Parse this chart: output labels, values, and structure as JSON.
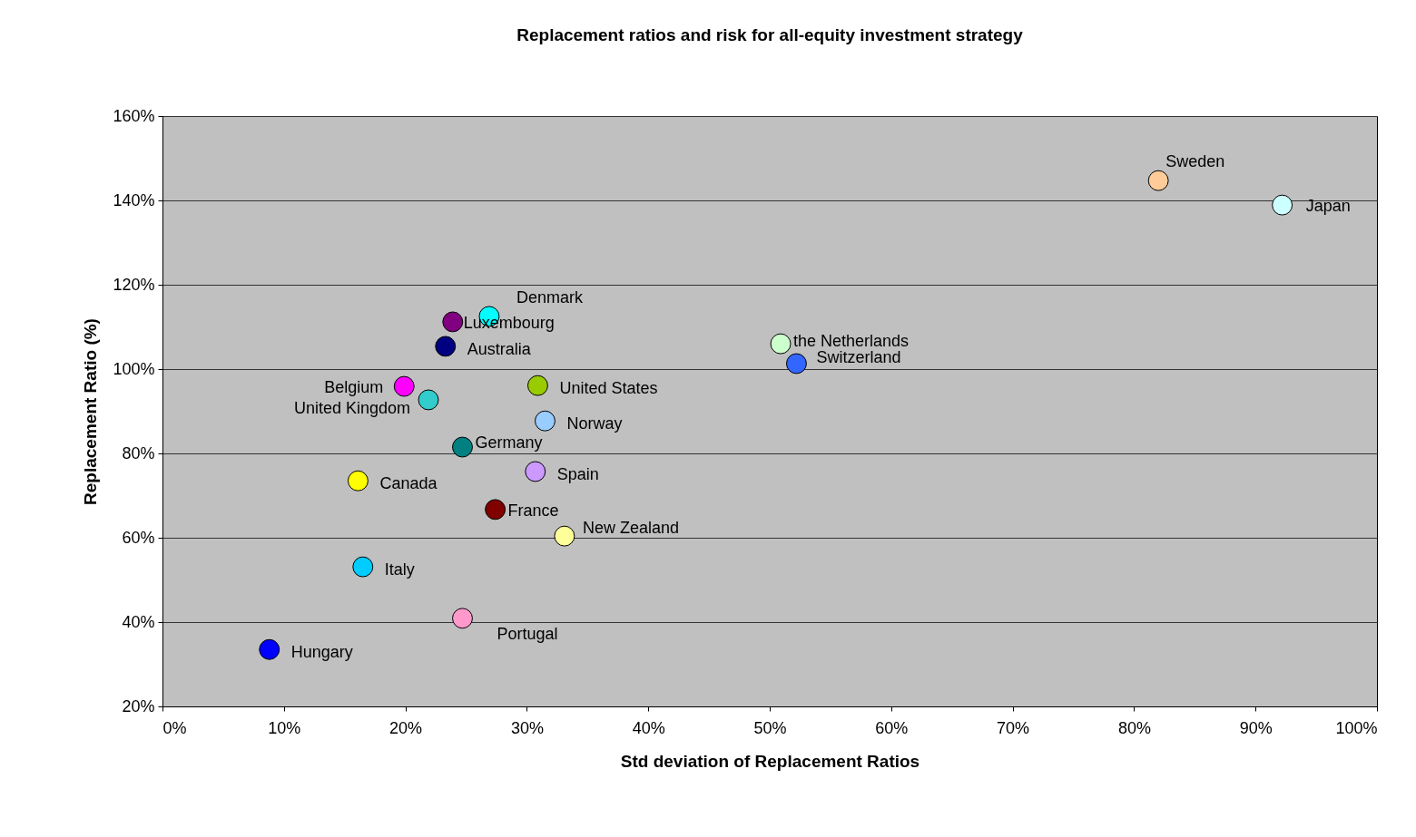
{
  "chart_data": {
    "type": "scatter",
    "title": "Replacement ratios and risk for all-equity investment strategy",
    "xlabel": "Std deviation of Replacement Ratios",
    "ylabel": "Replacement Ratio (%)",
    "xlim": [
      0,
      100
    ],
    "ylim": [
      20,
      160
    ],
    "xticks": [
      {
        "value": 0,
        "label": "0%"
      },
      {
        "value": 10,
        "label": "10%"
      },
      {
        "value": 20,
        "label": "20%"
      },
      {
        "value": 30,
        "label": "30%"
      },
      {
        "value": 40,
        "label": "40%"
      },
      {
        "value": 50,
        "label": "50%"
      },
      {
        "value": 60,
        "label": "60%"
      },
      {
        "value": 70,
        "label": "70%"
      },
      {
        "value": 80,
        "label": "80%"
      },
      {
        "value": 90,
        "label": "90%"
      },
      {
        "value": 100,
        "label": "100%"
      }
    ],
    "yticks": [
      {
        "value": 20,
        "label": "20%"
      },
      {
        "value": 40,
        "label": "40%"
      },
      {
        "value": 60,
        "label": "60%"
      },
      {
        "value": 80,
        "label": "80%"
      },
      {
        "value": 100,
        "label": "100%"
      },
      {
        "value": 120,
        "label": "120%"
      },
      {
        "value": 140,
        "label": "140%"
      },
      {
        "value": 160,
        "label": "160%"
      }
    ],
    "grid": "y",
    "marker": "circle",
    "series": [
      {
        "name": "Sweden",
        "color": "#ffcc99",
        "x": [
          82.0
        ],
        "values": [
          144.7
        ]
      },
      {
        "name": "Japan",
        "color": "#ccffff",
        "x": [
          92.2
        ],
        "values": [
          138.9
        ]
      },
      {
        "name": "Denmark",
        "color": "#00ffff",
        "x": [
          26.9
        ],
        "values": [
          112.5
        ]
      },
      {
        "name": "Luxembourg",
        "color": "#800080",
        "x": [
          23.9
        ],
        "values": [
          111.2
        ]
      },
      {
        "name": "Australia",
        "color": "#000080",
        "x": [
          23.3
        ],
        "values": [
          105.4
        ]
      },
      {
        "name": "the Netherlands",
        "color": "#ccffcc",
        "x": [
          50.9
        ],
        "values": [
          106.0
        ]
      },
      {
        "name": "Switzerland",
        "color": "#3366ff",
        "x": [
          52.2
        ],
        "values": [
          101.3
        ]
      },
      {
        "name": "Belgium",
        "color": "#ff00ff",
        "x": [
          19.9
        ],
        "values": [
          95.9
        ]
      },
      {
        "name": "United Kingdom",
        "color": "#33cccc",
        "x": [
          21.9
        ],
        "values": [
          92.7
        ]
      },
      {
        "name": "United States",
        "color": "#99cc00",
        "x": [
          30.9
        ],
        "values": [
          96.1
        ]
      },
      {
        "name": "Norway",
        "color": "#99ccff",
        "x": [
          31.5
        ],
        "values": [
          87.7
        ]
      },
      {
        "name": "Germany",
        "color": "#008080",
        "x": [
          24.7
        ],
        "values": [
          81.5
        ]
      },
      {
        "name": "Spain",
        "color": "#cc99ff",
        "x": [
          30.7
        ],
        "values": [
          75.7
        ]
      },
      {
        "name": "Canada",
        "color": "#ffff00",
        "x": [
          16.1
        ],
        "values": [
          73.5
        ]
      },
      {
        "name": "France",
        "color": "#800000",
        "x": [
          27.4
        ],
        "values": [
          66.7
        ]
      },
      {
        "name": "New Zealand",
        "color": "#ffff99",
        "x": [
          33.1
        ],
        "values": [
          60.4
        ]
      },
      {
        "name": "Italy",
        "color": "#00ccff",
        "x": [
          16.5
        ],
        "values": [
          53.1
        ]
      },
      {
        "name": "Portugal",
        "color": "#ff99cc",
        "x": [
          24.7
        ],
        "values": [
          40.9
        ]
      },
      {
        "name": "Hungary",
        "color": "#0000ff",
        "x": [
          8.8
        ],
        "values": [
          33.5
        ]
      }
    ]
  }
}
